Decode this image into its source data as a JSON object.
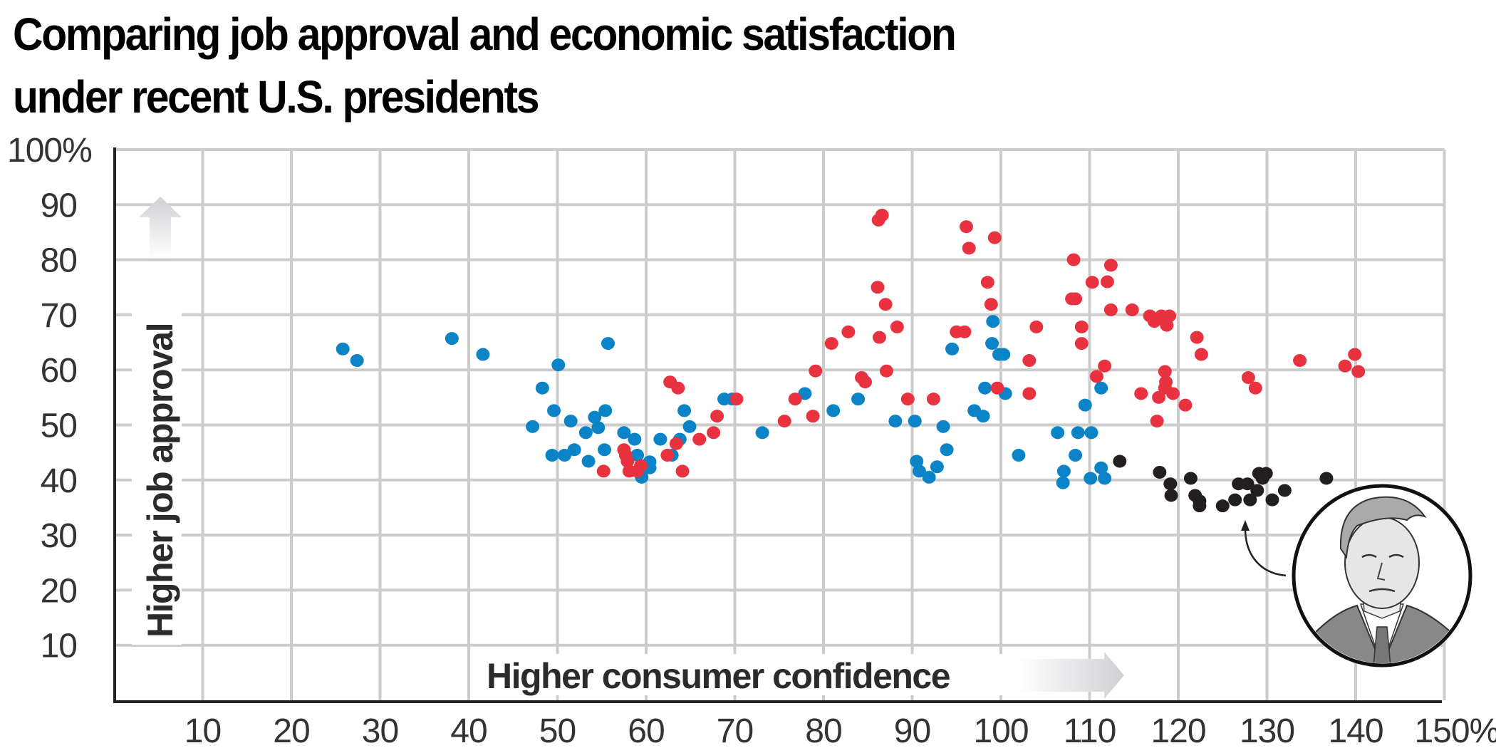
{
  "title": {
    "line1": "Comparing job approval and economic satisfaction",
    "line2": "under recent U.S. presidents"
  },
  "colors": {
    "series_blue": "#0a84c6",
    "series_red": "#e8323f",
    "series_black": "#231f20",
    "grid": "#cccccc",
    "axis": "#222222"
  },
  "portrait": {
    "icon": "president-portrait-illustration",
    "annotation": "arrow-pointing-to-black-cluster"
  },
  "chart_data": {
    "type": "scatter",
    "title": "Comparing job approval and economic satisfaction under recent U.S. presidents",
    "xlabel": "Higher consumer confidence",
    "ylabel": "Higher job approval",
    "xlim": [
      0,
      150
    ],
    "ylim": [
      0,
      100
    ],
    "grid": true,
    "x_ticks": [
      {
        "value": 10,
        "label": "10"
      },
      {
        "value": 20,
        "label": "20"
      },
      {
        "value": 30,
        "label": "30"
      },
      {
        "value": 40,
        "label": "40"
      },
      {
        "value": 50,
        "label": "50"
      },
      {
        "value": 60,
        "label": "60"
      },
      {
        "value": 70,
        "label": "70"
      },
      {
        "value": 80,
        "label": "80"
      },
      {
        "value": 90,
        "label": "90"
      },
      {
        "value": 100,
        "label": "100"
      },
      {
        "value": 110,
        "label": "110"
      },
      {
        "value": 120,
        "label": "120"
      },
      {
        "value": 130,
        "label": "130"
      },
      {
        "value": 140,
        "label": "140"
      },
      {
        "value": 150,
        "label": "150%"
      }
    ],
    "y_ticks": [
      {
        "value": 10,
        "label": "10"
      },
      {
        "value": 20,
        "label": "20"
      },
      {
        "value": 30,
        "label": "30"
      },
      {
        "value": 40,
        "label": "40"
      },
      {
        "value": 50,
        "label": "50"
      },
      {
        "value": 60,
        "label": "60"
      },
      {
        "value": 70,
        "label": "70"
      },
      {
        "value": 80,
        "label": "80"
      },
      {
        "value": 90,
        "label": "90"
      },
      {
        "value": 100,
        "label": "100%"
      }
    ],
    "legend": "none",
    "series": [
      {
        "name": "blue",
        "color": "#0a84c6",
        "points": [
          [
            25.8,
            63.8
          ],
          [
            27.4,
            61.7
          ],
          [
            38.1,
            65.7
          ],
          [
            41.6,
            62.8
          ],
          [
            48.3,
            56.7
          ],
          [
            47.2,
            49.7
          ],
          [
            50.1,
            60.9
          ],
          [
            49.6,
            52.6
          ],
          [
            49.4,
            44.5
          ],
          [
            50.8,
            44.5
          ],
          [
            51.5,
            50.7
          ],
          [
            51.9,
            45.5
          ],
          [
            53.2,
            48.6
          ],
          [
            54.2,
            51.4
          ],
          [
            54.6,
            49.5
          ],
          [
            53.5,
            43.4
          ],
          [
            55.3,
            45.5
          ],
          [
            55.4,
            52.6
          ],
          [
            55.7,
            64.8
          ],
          [
            57.5,
            48.6
          ],
          [
            58.7,
            47.4
          ],
          [
            59.0,
            44.5
          ],
          [
            59.5,
            40.5
          ],
          [
            60.4,
            43.3
          ],
          [
            60.4,
            42.2
          ],
          [
            61.6,
            47.4
          ],
          [
            62.9,
            44.5
          ],
          [
            63.8,
            47.4
          ],
          [
            64.3,
            52.6
          ],
          [
            64.9,
            49.7
          ],
          [
            68.8,
            54.7
          ],
          [
            69.7,
            54.7
          ],
          [
            73.1,
            48.6
          ],
          [
            77.9,
            55.7
          ],
          [
            81.1,
            52.6
          ],
          [
            83.9,
            54.7
          ],
          [
            94.5,
            63.8
          ],
          [
            99.1,
            68.8
          ],
          [
            99.0,
            64.8
          ],
          [
            99.8,
            62.8
          ],
          [
            100.3,
            62.8
          ],
          [
            100.5,
            55.7
          ],
          [
            98.2,
            56.7
          ],
          [
            97.0,
            52.6
          ],
          [
            98.0,
            51.6
          ],
          [
            88.1,
            50.7
          ],
          [
            90.3,
            50.7
          ],
          [
            90.5,
            43.4
          ],
          [
            90.8,
            41.6
          ],
          [
            91.9,
            40.5
          ],
          [
            92.8,
            42.4
          ],
          [
            93.5,
            49.7
          ],
          [
            93.9,
            45.5
          ],
          [
            102.0,
            44.5
          ],
          [
            106.4,
            48.6
          ],
          [
            107.1,
            41.6
          ],
          [
            107.0,
            39.5
          ],
          [
            108.4,
            44.5
          ],
          [
            108.7,
            48.6
          ],
          [
            109.5,
            53.6
          ],
          [
            110.1,
            40.3
          ],
          [
            110.2,
            48.6
          ],
          [
            111.3,
            56.7
          ],
          [
            111.3,
            42.2
          ],
          [
            111.7,
            40.3
          ]
        ]
      },
      {
        "name": "red",
        "color": "#e8323f",
        "points": [
          [
            55.2,
            41.6
          ],
          [
            57.5,
            45.5
          ],
          [
            57.7,
            44.5
          ],
          [
            57.9,
            43.4
          ],
          [
            58.1,
            41.6
          ],
          [
            59.0,
            41.6
          ],
          [
            59.4,
            42.6
          ],
          [
            62.4,
            44.5
          ],
          [
            62.7,
            57.8
          ],
          [
            63.6,
            56.7
          ],
          [
            63.4,
            46.6
          ],
          [
            64.1,
            41.6
          ],
          [
            66.0,
            47.4
          ],
          [
            67.6,
            48.6
          ],
          [
            68.0,
            51.6
          ],
          [
            70.2,
            54.7
          ],
          [
            75.6,
            50.7
          ],
          [
            76.8,
            54.7
          ],
          [
            78.8,
            51.6
          ],
          [
            79.1,
            59.8
          ],
          [
            80.9,
            64.8
          ],
          [
            82.8,
            66.9
          ],
          [
            84.3,
            58.6
          ],
          [
            84.7,
            57.8
          ],
          [
            86.1,
            75.0
          ],
          [
            86.3,
            65.9
          ],
          [
            86.2,
            87.2
          ],
          [
            86.6,
            88.1
          ],
          [
            87.0,
            71.9
          ],
          [
            87.1,
            59.8
          ],
          [
            88.3,
            67.8
          ],
          [
            89.5,
            54.7
          ],
          [
            92.4,
            54.7
          ],
          [
            95.0,
            66.9
          ],
          [
            95.9,
            66.9
          ],
          [
            96.1,
            86.0
          ],
          [
            96.4,
            82.1
          ],
          [
            98.5,
            75.9
          ],
          [
            98.9,
            71.9
          ],
          [
            99.3,
            84.0
          ],
          [
            99.6,
            56.7
          ],
          [
            103.2,
            61.7
          ],
          [
            103.2,
            55.7
          ],
          [
            104.0,
            67.8
          ],
          [
            108.2,
            80.0
          ],
          [
            108.0,
            72.9
          ],
          [
            108.4,
            72.9
          ],
          [
            109.1,
            67.8
          ],
          [
            109.1,
            64.8
          ],
          [
            110.3,
            75.9
          ],
          [
            110.8,
            58.8
          ],
          [
            111.7,
            60.7
          ],
          [
            112.0,
            76.0
          ],
          [
            112.4,
            79.0
          ],
          [
            112.4,
            70.9
          ],
          [
            114.8,
            70.9
          ],
          [
            115.8,
            55.7
          ],
          [
            116.8,
            69.8
          ],
          [
            117.3,
            68.8
          ],
          [
            117.6,
            50.7
          ],
          [
            117.8,
            55.0
          ],
          [
            118.1,
            69.8
          ],
          [
            118.5,
            59.7
          ],
          [
            118.5,
            56.7
          ],
          [
            118.6,
            57.8
          ],
          [
            118.7,
            68.1
          ],
          [
            119.0,
            69.8
          ],
          [
            119.4,
            55.7
          ],
          [
            120.8,
            53.6
          ],
          [
            122.1,
            65.9
          ],
          [
            122.6,
            62.8
          ],
          [
            127.9,
            58.6
          ],
          [
            128.7,
            56.7
          ],
          [
            133.7,
            61.7
          ],
          [
            138.8,
            60.7
          ],
          [
            139.9,
            62.8
          ],
          [
            140.3,
            59.7
          ]
        ]
      },
      {
        "name": "black",
        "color": "#231f20",
        "points": [
          [
            113.4,
            43.4
          ],
          [
            117.9,
            41.4
          ],
          [
            119.1,
            39.3
          ],
          [
            119.2,
            37.2
          ],
          [
            121.4,
            40.3
          ],
          [
            121.9,
            37.2
          ],
          [
            122.4,
            36.2
          ],
          [
            122.4,
            35.3
          ],
          [
            125.0,
            35.3
          ],
          [
            126.4,
            36.4
          ],
          [
            126.8,
            39.3
          ],
          [
            127.8,
            39.3
          ],
          [
            128.1,
            36.4
          ],
          [
            128.9,
            38.1
          ],
          [
            129.1,
            41.2
          ],
          [
            129.5,
            40.3
          ],
          [
            129.9,
            41.2
          ],
          [
            130.6,
            36.4
          ],
          [
            132.0,
            38.1
          ],
          [
            136.7,
            40.3
          ]
        ]
      }
    ]
  }
}
